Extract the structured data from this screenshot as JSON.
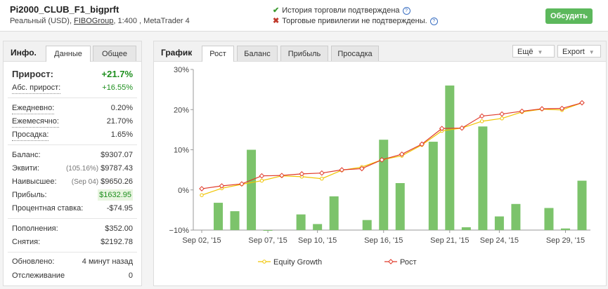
{
  "header": {
    "title": "Pi2000_CLUB_F1_bigprft",
    "sub_prefix": "Реальный (USD), ",
    "broker": "FIBOGroup",
    "sub_suffix": ", 1:400 , MetaTrader 4",
    "history_status": "История торговли подтверждена",
    "privileges_status": "Торговые привилегии не подтверждены.",
    "discuss_button": "Обсудить",
    "help_glyph": "?"
  },
  "left": {
    "info_label": "Инфо.",
    "tabs": [
      "Данные",
      "Общее"
    ],
    "growth": {
      "label": "Прирост:",
      "value": "+21.7%"
    },
    "abs_growth": {
      "label": "Абс. прирост:",
      "value": "+16.55%"
    },
    "daily": {
      "label": "Ежедневно:",
      "value": "0.20%"
    },
    "monthly": {
      "label": "Ежемесячно:",
      "value": "21.70%"
    },
    "drawdown": {
      "label": "Просадка:",
      "value": "1.65%"
    },
    "balance": {
      "label": "Баланс:",
      "value": "$9307.07"
    },
    "equity": {
      "label": "Эквити:",
      "pct": "(105.16%)",
      "value": "$9787.43"
    },
    "highest": {
      "label": "Наивысшее:",
      "date": "(Sep 04)",
      "value": "$9650.26"
    },
    "profit": {
      "label": "Прибыль:",
      "value": "$1632.95"
    },
    "interest": {
      "label": "Процентная ставка:",
      "value": "-$74.95"
    },
    "deposits": {
      "label": "Пополнения:",
      "value": "$352.00"
    },
    "withdrawals": {
      "label": "Снятия:",
      "value": "$2192.78"
    },
    "updated": {
      "label": "Обновлено:",
      "value": "4 минут назад"
    },
    "tracking": {
      "label": "Отслеживание",
      "value": "0"
    }
  },
  "chart_panel": {
    "label": "График",
    "tabs": [
      "Рост",
      "Баланс",
      "Прибыль",
      "Просадка"
    ],
    "more_dropdown": "Ещё",
    "export_dropdown": "Export"
  },
  "chart_data": {
    "type": "bar",
    "ylim": [
      -10,
      30
    ],
    "y_ticks": [
      "30%",
      "20%",
      "10%",
      "0%",
      "−10%"
    ],
    "y_tick_values": [
      30,
      20,
      10,
      0,
      -10
    ],
    "x_tick_labels": [
      "Sep 02, '15",
      "Sep 07, '15",
      "Sep 10, '15",
      "Sep 16, '15",
      "Sep 21, '15",
      "Sep 24, '15",
      "Sep 29, '15"
    ],
    "x_tick_index": [
      0,
      4,
      7,
      11,
      15,
      18,
      22
    ],
    "bars": [
      -3.2,
      -5.3,
      10.0,
      -10.0,
      -6.1,
      -8.5,
      -1.6,
      -7.5,
      12.5,
      1.7,
      12.0,
      26.0,
      -9.3,
      15.8,
      -6.6,
      -3.5,
      -4.5,
      -9.6,
      2.3
    ],
    "bar_index": [
      1,
      2,
      3,
      4,
      6,
      7,
      8,
      10,
      11,
      12,
      14,
      15,
      16,
      17,
      18,
      19,
      21,
      22,
      23
    ],
    "series": [
      {
        "name": "Equity Growth",
        "color": "#f0c400",
        "values": [
          -1.3,
          0.4,
          1.4,
          2.3,
          3.5,
          3.3,
          2.8,
          4.9,
          5.7,
          7.5,
          8.5,
          11.2,
          14.7,
          15.4,
          17.1,
          17.8,
          19.4,
          20.1,
          19.9,
          21.7
        ]
      },
      {
        "name": "Рост",
        "color": "#e03a2a",
        "values": [
          0.3,
          1.0,
          1.5,
          3.5,
          3.6,
          4.0,
          4.2,
          5.0,
          5.3,
          7.5,
          8.9,
          11.4,
          15.3,
          15.4,
          18.4,
          18.9,
          19.6,
          20.2,
          20.3,
          21.7
        ]
      }
    ],
    "bar_color": "#7cc36b"
  }
}
